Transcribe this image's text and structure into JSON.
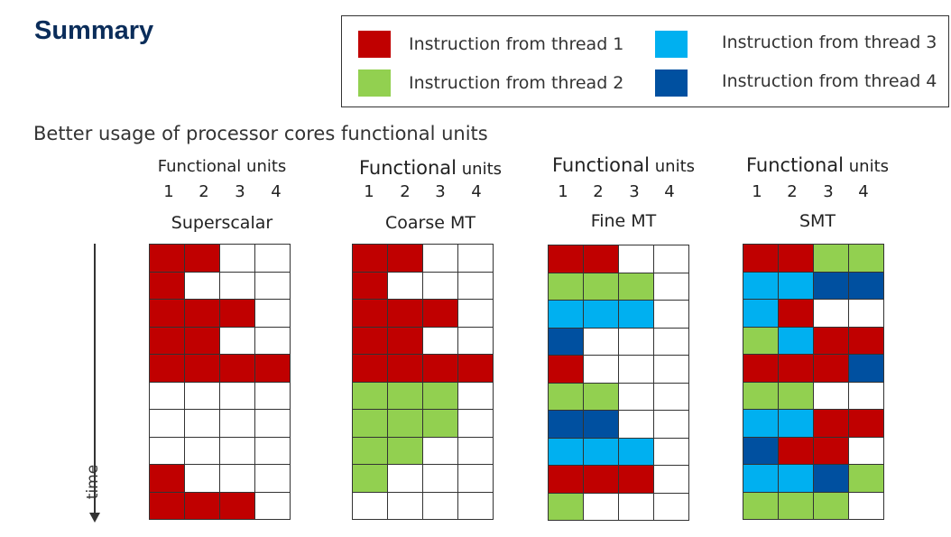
{
  "title": "Summary",
  "subtitle": "Better usage of processor cores functional units",
  "colors": {
    "thread1": "#c00000",
    "thread2": "#92d050",
    "thread3": "#00b0f0",
    "thread4": "#0050a0",
    "empty": "#ffffff"
  },
  "legend": [
    {
      "label": "Instruction from thread 1",
      "color_key": "thread1"
    },
    {
      "label": "Instruction from thread 2",
      "color_key": "thread2"
    },
    {
      "label": "Instruction from thread 3",
      "color_key": "thread3"
    },
    {
      "label": "Instruction from thread 4",
      "color_key": "thread4"
    }
  ],
  "axis": {
    "time_label": "time"
  },
  "panels": [
    {
      "heading_a": "Functional",
      "heading_b": "units",
      "unit_numbers": [
        "1",
        "2",
        "3",
        "4"
      ],
      "name": "Superscalar",
      "rows": [
        [
          1,
          1,
          0,
          0
        ],
        [
          1,
          0,
          0,
          0
        ],
        [
          1,
          1,
          1,
          0
        ],
        [
          1,
          1,
          0,
          0
        ],
        [
          1,
          1,
          1,
          1
        ],
        [
          0,
          0,
          0,
          0
        ],
        [
          0,
          0,
          0,
          0
        ],
        [
          0,
          0,
          0,
          0
        ],
        [
          1,
          0,
          0,
          0
        ],
        [
          1,
          1,
          1,
          0
        ]
      ]
    },
    {
      "heading_a": "Functional",
      "heading_b": "units",
      "unit_numbers": [
        "1",
        "2",
        "3",
        "4"
      ],
      "name": "Coarse MT",
      "rows": [
        [
          1,
          1,
          0,
          0
        ],
        [
          1,
          0,
          0,
          0
        ],
        [
          1,
          1,
          1,
          0
        ],
        [
          1,
          1,
          0,
          0
        ],
        [
          1,
          1,
          1,
          1
        ],
        [
          2,
          2,
          2,
          0
        ],
        [
          2,
          2,
          2,
          0
        ],
        [
          2,
          2,
          0,
          0
        ],
        [
          2,
          0,
          0,
          0
        ],
        [
          0,
          0,
          0,
          0
        ]
      ]
    },
    {
      "heading_a": "Functional",
      "heading_b": "units",
      "unit_numbers": [
        "1",
        "2",
        "3",
        "4"
      ],
      "name": "Fine MT",
      "rows": [
        [
          1,
          1,
          0,
          0
        ],
        [
          2,
          2,
          2,
          0
        ],
        [
          3,
          3,
          3,
          0
        ],
        [
          4,
          0,
          0,
          0
        ],
        [
          1,
          0,
          0,
          0
        ],
        [
          2,
          2,
          0,
          0
        ],
        [
          4,
          4,
          0,
          0
        ],
        [
          3,
          3,
          3,
          0
        ],
        [
          1,
          1,
          1,
          0
        ],
        [
          2,
          0,
          0,
          0
        ]
      ]
    },
    {
      "heading_a": "Functional",
      "heading_b": "units",
      "unit_numbers": [
        "1",
        "2",
        "3",
        "4"
      ],
      "name": "SMT",
      "rows": [
        [
          1,
          1,
          2,
          2
        ],
        [
          3,
          3,
          4,
          4
        ],
        [
          3,
          1,
          0,
          0
        ],
        [
          2,
          3,
          1,
          1
        ],
        [
          1,
          1,
          1,
          4
        ],
        [
          2,
          2,
          0,
          0
        ],
        [
          3,
          3,
          1,
          1
        ],
        [
          4,
          1,
          1,
          0
        ],
        [
          3,
          3,
          4,
          2
        ],
        [
          2,
          2,
          2,
          0
        ]
      ]
    }
  ]
}
